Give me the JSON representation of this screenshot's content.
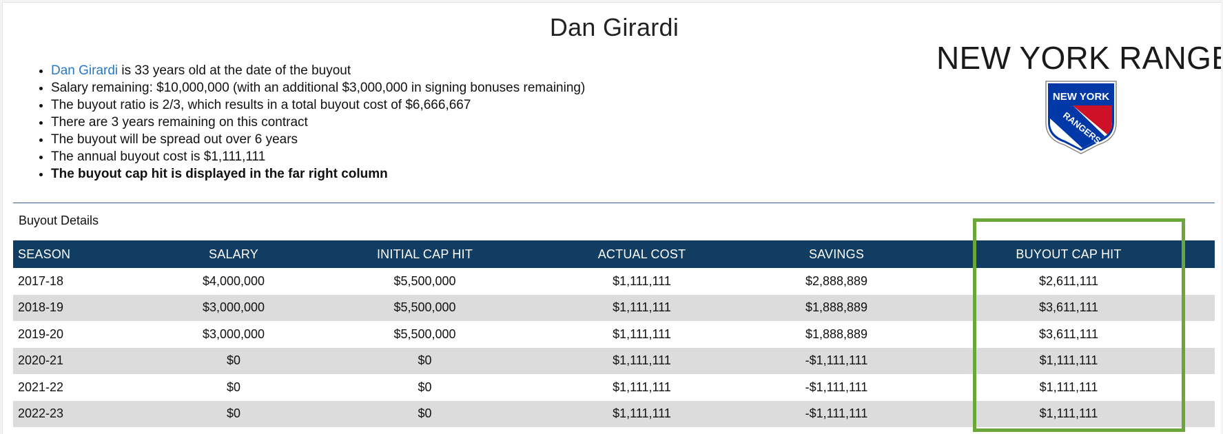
{
  "player": {
    "name": "Dan Girardi"
  },
  "facts": {
    "link_text": "Dan Girardi",
    "age_text": " is 33 years old at the date of the buyout",
    "items": [
      "Salary remaining: $10,000,000 (with an additional $3,000,000 in signing bonuses remaining)",
      "The buyout ratio is 2/3, which results in a total buyout cost of $6,666,667",
      "There are 3 years remaining on this contract",
      "The buyout will be spread out over 6 years",
      "The annual buyout cost is $1,111,111"
    ],
    "bold_note": "The buyout cap hit is displayed in the far right column"
  },
  "team": {
    "name": "NEW YORK RANGERS",
    "logo_icon": "new-york-rangers-shield-logo",
    "logo_text_line1": "NEW YORK",
    "logo_text_line2": "RANGERS",
    "colors": {
      "blue": "#0038a8",
      "red": "#ce1126"
    }
  },
  "buyout": {
    "section_title": "Buyout Details",
    "columns": [
      "SEASON",
      "SALARY",
      "INITIAL CAP HIT",
      "ACTUAL COST",
      "SAVINGS",
      "BUYOUT CAP HIT"
    ],
    "rows": [
      [
        "2017-18",
        "$4,000,000",
        "$5,500,000",
        "$1,111,111",
        "$2,888,889",
        "$2,611,111"
      ],
      [
        "2018-19",
        "$3,000,000",
        "$5,500,000",
        "$1,111,111",
        "$1,888,889",
        "$3,611,111"
      ],
      [
        "2019-20",
        "$3,000,000",
        "$5,500,000",
        "$1,111,111",
        "$1,888,889",
        "$3,611,111"
      ],
      [
        "2020-21",
        "$0",
        "$0",
        "$1,111,111",
        "-$1,111,111",
        "$1,111,111"
      ],
      [
        "2021-22",
        "$0",
        "$0",
        "$1,111,111",
        "-$1,111,111",
        "$1,111,111"
      ],
      [
        "2022-23",
        "$0",
        "$0",
        "$1,111,111",
        "-$1,111,111",
        "$1,111,111"
      ]
    ]
  },
  "colors": {
    "header_bg": "#123d63",
    "stripe_bg": "#dcdcdc",
    "link": "#2a78c4",
    "highlight_border": "#6aa639",
    "divider": "#3a5f91"
  }
}
